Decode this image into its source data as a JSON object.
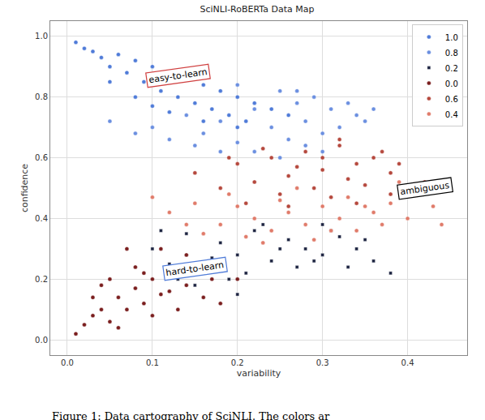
{
  "chart_data": {
    "type": "scatter",
    "title": "SciNLI-RoBERTa Data Map",
    "x_label": "variability",
    "y_label": "confidence",
    "caption": "Figure 1: Data cartography of SciNLI. The colors ar",
    "xlim": [
      -0.02,
      0.47
    ],
    "ylim": [
      -0.05,
      1.05
    ],
    "xticks": [
      {
        "value": 0,
        "label": "0.0"
      },
      {
        "value": 0.1,
        "label": "0.1"
      },
      {
        "value": 0.2,
        "label": "0.2"
      },
      {
        "value": 0.3,
        "label": "0.3"
      },
      {
        "value": 0.4,
        "label": "0.4"
      }
    ],
    "yticks": [
      {
        "value": 0,
        "label": "0.0"
      },
      {
        "value": 0.2,
        "label": "0.2"
      },
      {
        "value": 0.4,
        "label": "0.4"
      },
      {
        "value": 0.6,
        "label": "0.6"
      },
      {
        "value": 0.8,
        "label": "0.8"
      },
      {
        "value": 1,
        "label": "1.0"
      }
    ],
    "grid": true,
    "legend": "upper right",
    "annotations": [
      {
        "text": "easy-to-learn",
        "x": 0.13,
        "y": 0.87,
        "color": "#d04040"
      },
      {
        "text": "ambiguous",
        "x": 0.42,
        "y": 0.5,
        "color": "#000000"
      },
      {
        "text": "hard-to-learn",
        "x": 0.15,
        "y": 0.235,
        "color": "#4f7bd8"
      }
    ],
    "series": [
      {
        "name": "1.0",
        "color": "#4f7bd8",
        "marker": "circle",
        "x": [
          0.01,
          0.02,
          0.03,
          0.04,
          0.05,
          0.06,
          0.07,
          0.08,
          0.09,
          0.1,
          0.11,
          0.12,
          0.13,
          0.14,
          0.15,
          0.16,
          0.17,
          0.18,
          0.19,
          0.2,
          0.21,
          0.22,
          0.24,
          0.26,
          0.05,
          0.08,
          0.12,
          0.16,
          0.2,
          0.1
        ],
        "y": [
          0.98,
          0.96,
          0.95,
          0.93,
          0.9,
          0.94,
          0.88,
          0.92,
          0.85,
          0.9,
          0.82,
          0.88,
          0.8,
          0.86,
          0.78,
          0.84,
          0.76,
          0.82,
          0.74,
          0.8,
          0.72,
          0.78,
          0.76,
          0.74,
          0.85,
          0.8,
          0.75,
          0.72,
          0.7,
          0.77
        ]
      },
      {
        "name": "0.8",
        "color": "#6b8fe0",
        "marker": "circle",
        "x": [
          0.05,
          0.08,
          0.1,
          0.12,
          0.14,
          0.16,
          0.18,
          0.2,
          0.22,
          0.24,
          0.25,
          0.26,
          0.27,
          0.28,
          0.29,
          0.3,
          0.31,
          0.32,
          0.33,
          0.34,
          0.22,
          0.25,
          0.28,
          0.3,
          0.18,
          0.15,
          0.35,
          0.36,
          0.2,
          0.27
        ],
        "y": [
          0.72,
          0.68,
          0.7,
          0.66,
          0.74,
          0.68,
          0.72,
          0.65,
          0.76,
          0.7,
          0.82,
          0.66,
          0.78,
          0.72,
          0.8,
          0.68,
          0.76,
          0.7,
          0.78,
          0.74,
          0.62,
          0.6,
          0.64,
          0.62,
          0.62,
          0.64,
          0.72,
          0.76,
          0.84,
          0.82
        ]
      },
      {
        "name": "0.2",
        "color": "#1c2340",
        "marker": "square",
        "x": [
          0.1,
          0.12,
          0.14,
          0.16,
          0.18,
          0.2,
          0.22,
          0.24,
          0.26,
          0.28,
          0.3,
          0.32,
          0.34,
          0.36,
          0.38,
          0.15,
          0.19,
          0.23,
          0.27,
          0.31,
          0.35,
          0.13,
          0.17,
          0.21,
          0.25,
          0.29,
          0.33,
          0.11,
          0.2,
          0.3
        ],
        "y": [
          0.3,
          0.25,
          0.35,
          0.22,
          0.32,
          0.28,
          0.36,
          0.26,
          0.33,
          0.3,
          0.28,
          0.34,
          0.3,
          0.26,
          0.22,
          0.18,
          0.2,
          0.38,
          0.24,
          0.36,
          0.33,
          0.2,
          0.27,
          0.22,
          0.3,
          0.26,
          0.24,
          0.36,
          0.15,
          0.38
        ]
      },
      {
        "name": "0.0",
        "color": "#7a1e1e",
        "marker": "circle",
        "x": [
          0.01,
          0.02,
          0.03,
          0.04,
          0.05,
          0.06,
          0.07,
          0.08,
          0.09,
          0.1,
          0.11,
          0.12,
          0.13,
          0.14,
          0.15,
          0.16,
          0.17,
          0.18,
          0.05,
          0.08,
          0.1,
          0.12,
          0.03,
          0.06,
          0.09,
          0.14,
          0.2,
          0.07,
          0.11,
          0.04
        ],
        "y": [
          0.02,
          0.05,
          0.08,
          0.1,
          0.06,
          0.14,
          0.1,
          0.17,
          0.12,
          0.2,
          0.15,
          0.22,
          0.1,
          0.18,
          0.25,
          0.14,
          0.2,
          0.12,
          0.2,
          0.24,
          0.08,
          0.16,
          0.14,
          0.04,
          0.22,
          0.28,
          0.2,
          0.3,
          0.3,
          0.18
        ]
      },
      {
        "name": "0.6",
        "color": "#b5483d",
        "marker": "circle",
        "x": [
          0.15,
          0.18,
          0.2,
          0.22,
          0.24,
          0.26,
          0.28,
          0.3,
          0.32,
          0.34,
          0.36,
          0.38,
          0.4,
          0.42,
          0.25,
          0.29,
          0.33,
          0.37,
          0.21,
          0.27,
          0.31,
          0.35,
          0.39,
          0.23,
          0.3,
          0.34,
          0.38,
          0.19,
          0.26,
          0.32
        ],
        "y": [
          0.55,
          0.5,
          0.58,
          0.52,
          0.6,
          0.54,
          0.62,
          0.56,
          0.64,
          0.58,
          0.6,
          0.55,
          0.5,
          0.52,
          0.48,
          0.5,
          0.53,
          0.62,
          0.45,
          0.57,
          0.47,
          0.51,
          0.58,
          0.63,
          0.6,
          0.45,
          0.48,
          0.6,
          0.44,
          0.66
        ]
      },
      {
        "name": "0.4",
        "color": "#e07b6a",
        "marker": "circle",
        "x": [
          0.12,
          0.15,
          0.18,
          0.2,
          0.22,
          0.24,
          0.26,
          0.28,
          0.3,
          0.32,
          0.34,
          0.36,
          0.38,
          0.4,
          0.43,
          0.16,
          0.21,
          0.25,
          0.29,
          0.33,
          0.37,
          0.19,
          0.23,
          0.27,
          0.31,
          0.35,
          0.1,
          0.14,
          0.39,
          0.44
        ],
        "y": [
          0.42,
          0.45,
          0.38,
          0.44,
          0.4,
          0.36,
          0.42,
          0.38,
          0.44,
          0.4,
          0.36,
          0.42,
          0.45,
          0.4,
          0.44,
          0.35,
          0.34,
          0.46,
          0.33,
          0.47,
          0.38,
          0.48,
          0.32,
          0.5,
          0.36,
          0.44,
          0.47,
          0.38,
          0.52,
          0.38
        ]
      }
    ]
  }
}
